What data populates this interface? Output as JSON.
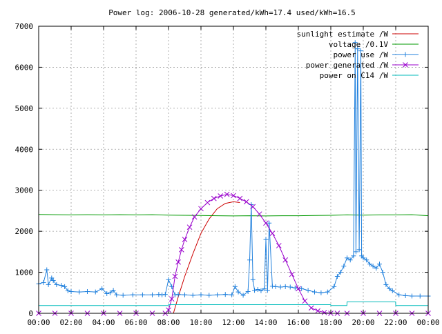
{
  "chart_data": {
    "type": "line",
    "title": "Power log: 2006-10-28 generated/kWh=17.4 used/kWh=16.5",
    "xlabel": "",
    "ylabel": "",
    "xlim": [
      0,
      24
    ],
    "ylim": [
      0,
      7000
    ],
    "grid": true,
    "legend_position": "top-right",
    "x_ticks": [
      {
        "value": 0,
        "label": "00:00"
      },
      {
        "value": 2,
        "label": "02:00"
      },
      {
        "value": 4,
        "label": "04:00"
      },
      {
        "value": 6,
        "label": "06:00"
      },
      {
        "value": 8,
        "label": "08:00"
      },
      {
        "value": 10,
        "label": "10:00"
      },
      {
        "value": 12,
        "label": "12:00"
      },
      {
        "value": 14,
        "label": "14:00"
      },
      {
        "value": 16,
        "label": "16:00"
      },
      {
        "value": 18,
        "label": "18:00"
      },
      {
        "value": 20,
        "label": "20:00"
      },
      {
        "value": 22,
        "label": "22:00"
      },
      {
        "value": 24,
        "label": "00:00"
      }
    ],
    "y_ticks": [
      {
        "value": 0,
        "label": "0"
      },
      {
        "value": 1000,
        "label": "1000"
      },
      {
        "value": 2000,
        "label": "2000"
      },
      {
        "value": 3000,
        "label": "3000"
      },
      {
        "value": 4000,
        "label": "4000"
      },
      {
        "value": 5000,
        "label": "5000"
      },
      {
        "value": 6000,
        "label": "6000"
      },
      {
        "value": 7000,
        "label": "7000"
      }
    ],
    "series": [
      {
        "name": "sunlight estimate /W",
        "color": "#cc0000",
        "style": "line",
        "x": [
          8.3,
          8.6,
          9.0,
          9.5,
          10.0,
          10.5,
          11.0,
          11.5,
          12.0,
          12.4
        ],
        "y": [
          0,
          400,
          900,
          1450,
          1950,
          2300,
          2550,
          2680,
          2720,
          2700
        ]
      },
      {
        "name": "voltage /0.1V",
        "color": "#009900",
        "style": "line",
        "x": [
          0,
          1,
          2,
          3,
          4,
          5,
          6,
          7,
          8,
          9,
          10,
          11,
          12,
          13,
          14,
          15,
          16,
          17,
          18,
          19,
          20,
          21,
          22,
          23,
          24
        ],
        "y": [
          2410,
          2405,
          2400,
          2405,
          2400,
          2405,
          2400,
          2405,
          2395,
          2390,
          2385,
          2380,
          2375,
          2380,
          2375,
          2380,
          2380,
          2385,
          2390,
          2400,
          2395,
          2400,
          2400,
          2405,
          2380
        ]
      },
      {
        "name": "power use /W",
        "color": "#2080dd",
        "style": "linespoints",
        "marker": "plus",
        "x": [
          0,
          0.3,
          0.5,
          0.6,
          0.8,
          0.9,
          1.1,
          1.4,
          1.6,
          1.8,
          2.0,
          2.5,
          3.0,
          3.5,
          3.9,
          4.2,
          4.4,
          4.6,
          4.8,
          5.2,
          5.8,
          6.4,
          7.0,
          7.4,
          7.6,
          7.8,
          8.0,
          8.2,
          8.4,
          8.6,
          9.0,
          9.5,
          10.0,
          10.5,
          11.0,
          11.5,
          11.9,
          12.1,
          12.3,
          12.6,
          12.9,
          13.0,
          13.1,
          13.2,
          13.3,
          13.5,
          13.7,
          13.9,
          14.0,
          14.1,
          14.2,
          14.4,
          14.6,
          14.9,
          15.2,
          15.5,
          15.8,
          16.2,
          16.6,
          17.0,
          17.4,
          17.8,
          18.2,
          18.4,
          18.6,
          18.8,
          19.0,
          19.2,
          19.4,
          19.5,
          19.55,
          19.65,
          19.75,
          19.85,
          19.9,
          20.0,
          20.2,
          20.4,
          20.6,
          20.8,
          21.0,
          21.2,
          21.4,
          21.6,
          21.8,
          22.2,
          22.6,
          23.0,
          23.5,
          24.0
        ],
        "y": [
          720,
          750,
          1060,
          700,
          860,
          800,
          700,
          680,
          650,
          550,
          530,
          520,
          530,
          520,
          600,
          480,
          500,
          560,
          450,
          440,
          450,
          450,
          450,
          460,
          450,
          460,
          820,
          650,
          450,
          460,
          450,
          440,
          450,
          440,
          450,
          460,
          450,
          650,
          520,
          440,
          530,
          1300,
          2650,
          820,
          560,
          580,
          550,
          600,
          1800,
          560,
          2200,
          660,
          650,
          640,
          650,
          640,
          620,
          600,
          560,
          520,
          500,
          520,
          650,
          900,
          1000,
          1150,
          1350,
          1300,
          1400,
          6600,
          1500,
          6450,
          1550,
          6400,
          1400,
          1350,
          1300,
          1200,
          1150,
          1100,
          1200,
          1000,
          700,
          600,
          550,
          450,
          430,
          420,
          420,
          420
        ]
      },
      {
        "name": "power generated /W",
        "color": "#9900cc",
        "style": "linespoints",
        "marker": "cross",
        "x": [
          0,
          1,
          2,
          3,
          4,
          5,
          6,
          7,
          7.8,
          8.0,
          8.2,
          8.4,
          8.6,
          8.8,
          9.0,
          9.3,
          9.6,
          10.0,
          10.4,
          10.8,
          11.2,
          11.6,
          12.0,
          12.4,
          12.8,
          13.2,
          13.6,
          14.0,
          14.4,
          14.8,
          15.2,
          15.6,
          16.0,
          16.4,
          16.8,
          17.2,
          17.6,
          18.0,
          18.4,
          19.0,
          20,
          21,
          22,
          23,
          24
        ],
        "y": [
          0,
          0,
          0,
          0,
          0,
          0,
          0,
          0,
          0,
          80,
          350,
          900,
          1250,
          1550,
          1800,
          2100,
          2350,
          2550,
          2700,
          2800,
          2860,
          2900,
          2870,
          2800,
          2720,
          2600,
          2420,
          2200,
          1950,
          1650,
          1300,
          950,
          600,
          300,
          130,
          60,
          20,
          0,
          0,
          0,
          0,
          0,
          0,
          0,
          0
        ]
      },
      {
        "name": "power on C14 /W",
        "color": "#00bbbb",
        "style": "line",
        "x": [
          0,
          2,
          4,
          6,
          7.99,
          8.0,
          10,
          12,
          14,
          16,
          17.99,
          18.0,
          18.99,
          19.0,
          20,
          21,
          21.99,
          22.0,
          24
        ],
        "y": [
          190,
          190,
          190,
          190,
          190,
          210,
          210,
          210,
          210,
          210,
          210,
          190,
          190,
          280,
          280,
          280,
          280,
          190,
          190
        ]
      }
    ]
  }
}
